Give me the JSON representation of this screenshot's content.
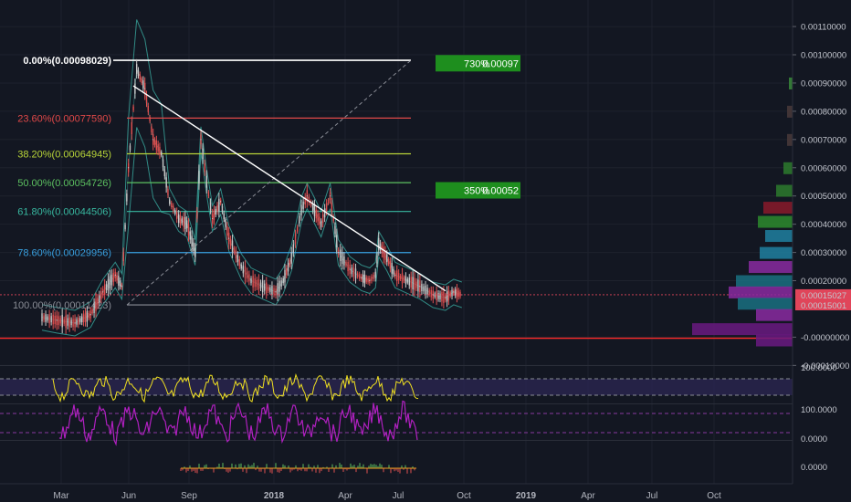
{
  "colors": {
    "background": "#131722",
    "grid": "#1e222d",
    "candle_up": "#c9c9c9",
    "candle_down": "#e05050",
    "bollinger": "#3aa99f",
    "trendline": "#ffffff",
    "support_line": "#ff2a2a",
    "rsi_line": "#f0e020",
    "stoch_line": "#b020c0",
    "target_box": "#1e8e1e",
    "price_tag": "#e0455a"
  },
  "price_axis": {
    "ticks": [
      "0.00110000",
      "0.00100000",
      "0.00090000",
      "0.00080000",
      "0.00070000",
      "0.00060000",
      "0.00050000",
      "0.00040000",
      "0.00030000",
      "0.00020000",
      "-0.00000000",
      "-0.00010000"
    ],
    "current_price": "0.00015027",
    "support_price": "0.00015001"
  },
  "time_axis": {
    "labels": [
      "Mar",
      "Jun",
      "Sep",
      "2018",
      "Apr",
      "Jul",
      "Oct",
      "2019",
      "Apr",
      "Jul",
      "Oct"
    ]
  },
  "fib_levels": [
    {
      "label": "0.00%(0.00098029)",
      "price": 0.00098029,
      "color": "#ffffff"
    },
    {
      "label": "23.60%(0.00077590)",
      "price": 0.0007759,
      "color": "#e04848"
    },
    {
      "label": "38.20%(0.00064945)",
      "price": 0.00064945,
      "color": "#b8d438"
    },
    {
      "label": "50.00%(0.00054726)",
      "price": 0.00054726,
      "color": "#5cc060"
    },
    {
      "label": "61.80%(0.00044506)",
      "price": 0.00044506,
      "color": "#38b8a0"
    },
    {
      "label": "78.60%(0.00029956)",
      "price": 0.00029956,
      "color": "#38a0e0"
    },
    {
      "label": "100.00%(0.00011423)",
      "price": 0.00011423,
      "color": "#8a8d96"
    }
  ],
  "targets": [
    {
      "pct": "730%",
      "price": "0.00097"
    },
    {
      "pct": "350%",
      "price": "0.00052"
    }
  ],
  "rsi_panel": {
    "scale_label": "100.0000"
  },
  "stoch_panel": {
    "scale_top": "100.0000",
    "scale_bottom": "0.0000"
  },
  "macd_panel": {
    "scale_label": "0.0000"
  },
  "chart_data": {
    "type": "line",
    "ylim": [
      -0.00014,
      0.00114
    ],
    "x": [
      "2017-02-20",
      "2017-03-10",
      "2017-04-01",
      "2017-04-20",
      "2017-05-05",
      "2017-05-20",
      "2017-05-28",
      "2017-06-05",
      "2017-06-15",
      "2017-06-25",
      "2017-07-05",
      "2017-07-15",
      "2017-07-25",
      "2017-08-05",
      "2017-08-15",
      "2017-08-25",
      "2017-09-01",
      "2017-09-08",
      "2017-09-15",
      "2017-09-25",
      "2017-10-05",
      "2017-10-20",
      "2017-11-01",
      "2017-11-15",
      "2017-12-01",
      "2017-12-10",
      "2017-12-20",
      "2018-01-01",
      "2018-01-08",
      "2018-01-15",
      "2018-01-25",
      "2018-02-05",
      "2018-02-15",
      "2018-03-01",
      "2018-03-15",
      "2018-03-25",
      "2018-04-01",
      "2018-04-05",
      "2018-04-15",
      "2018-04-25",
      "2018-05-10",
      "2018-05-25",
      "2018-06-10",
      "2018-06-25",
      "2018-07-05",
      "2018-07-15"
    ],
    "series": [
      {
        "values": [
          7e-05,
          6e-05,
          5e-05,
          8e-05,
          0.00016,
          0.00022,
          0.00018,
          0.0006,
          0.00095,
          0.00088,
          0.0007,
          0.00065,
          0.00048,
          0.00042,
          0.0004,
          0.0003,
          0.0007,
          0.00055,
          0.00042,
          0.00048,
          0.00035,
          0.00025,
          0.0002,
          0.00018,
          0.00016,
          0.0002,
          0.00028,
          0.00045,
          0.0005,
          0.00046,
          0.0004,
          0.0005,
          0.0003,
          0.00024,
          0.00021,
          0.0002,
          0.00022,
          0.00033,
          0.00028,
          0.00022,
          0.0002,
          0.00018,
          0.00015,
          0.00014,
          0.00016,
          0.00015
        ]
      }
    ]
  }
}
